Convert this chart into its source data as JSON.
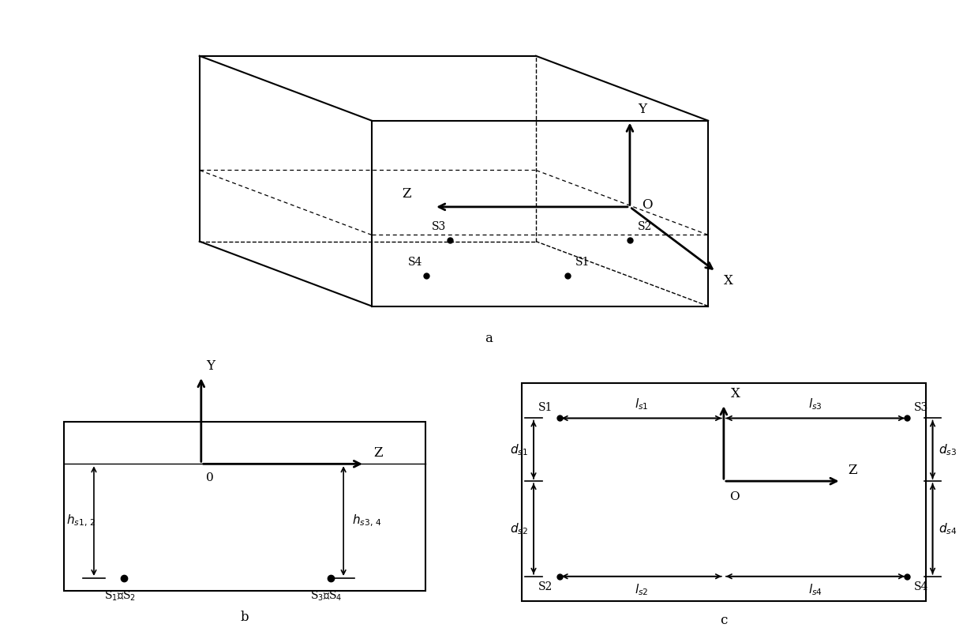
{
  "bg_color": "#ffffff",
  "line_color": "#000000",
  "fig_label_a": "a",
  "fig_label_b": "b",
  "fig_label_c": "c"
}
